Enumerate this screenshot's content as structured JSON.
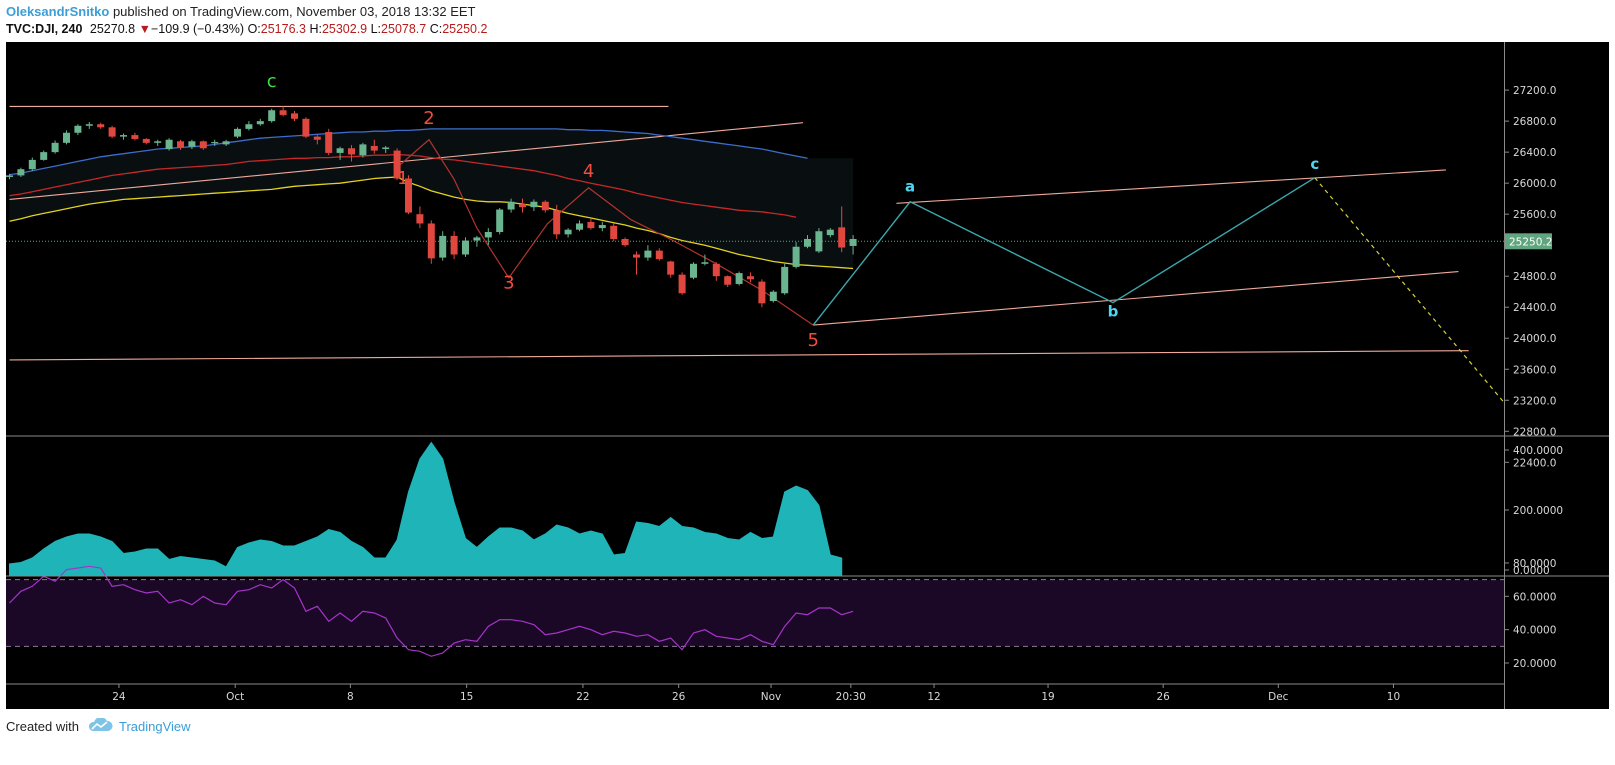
{
  "header": {
    "author": "OleksandrSnitko",
    "published_text": "published on TradingView.com, November 03, 2018 13:32 EET",
    "symbol": "TVC:DJI, 240",
    "last": "25270.8",
    "down_arrow": "▼",
    "change": "−109.9 (−0.43%)",
    "open_label": "O:",
    "open": "25176.3",
    "high_label": "H:",
    "high": "25302.9",
    "low_label": "L:",
    "low": "25078.7",
    "close_label": "C:",
    "close": "25250.2"
  },
  "footer": {
    "created_with": "Created with",
    "brand": "TradingView",
    "logo_icon": "tradingview-cloud-icon"
  },
  "colors": {
    "background": "#000000",
    "up": "#6ab58f",
    "down": "#e0473e",
    "volume_fill": "#1fb5b8",
    "rsi_line": "#a534c9",
    "rsi_band": "#1b0826",
    "ema_yellow": "#e3d21e",
    "ema_red": "#c62828",
    "ema_blue": "#3e6ccc",
    "trendline": "#f0a99a",
    "projection": "#3aa8ad",
    "projection_dashed": "#d8d23a",
    "wave_label_red": "#f24b3f",
    "wave_label_cyan": "#4fd6f0",
    "wave_label_green": "#3ede4a",
    "price_tag": "#5fa57e"
  },
  "chart_data": [
    {
      "type": "candlestick",
      "title": "TVC:DJI, 240",
      "x_tick_labels": [
        "24",
        "Oct",
        "8",
        "15",
        "22",
        "26",
        "Nov",
        "20:30",
        "12",
        "19",
        "26",
        "Dec",
        "10"
      ],
      "y_tick_labels": [
        "27200.0",
        "26800.0",
        "26400.0",
        "26000.0",
        "25600.0",
        "25250.2",
        "24800.0",
        "24400.0",
        "24000.0",
        "23600.0",
        "23200.0",
        "22800.0",
        "22400.0"
      ],
      "y_ticks": [
        27200,
        26800,
        26400,
        26000,
        25600,
        24800,
        24400,
        24000,
        23600,
        23200,
        22800,
        22400
      ],
      "ylim": [
        22360,
        27500
      ],
      "last_price": 25250.2,
      "last_price_label": "25250.2",
      "ohlc": [
        [
          26080,
          26120,
          26050,
          26100
        ],
        [
          26100,
          26200,
          26080,
          26180
        ],
        [
          26180,
          26330,
          26160,
          26300
        ],
        [
          26300,
          26420,
          26290,
          26400
        ],
        [
          26400,
          26550,
          26380,
          26520
        ],
        [
          26520,
          26680,
          26500,
          26650
        ],
        [
          26650,
          26760,
          26620,
          26740
        ],
        [
          26740,
          26790,
          26700,
          26760
        ],
        [
          26760,
          26780,
          26700,
          26720
        ],
        [
          26720,
          26740,
          26580,
          26600
        ],
        [
          26600,
          26640,
          26560,
          26620
        ],
        [
          26620,
          26650,
          26550,
          26570
        ],
        [
          26570,
          26580,
          26500,
          26520
        ],
        [
          26520,
          26560,
          26480,
          26540
        ],
        [
          26440,
          26580,
          26420,
          26560
        ],
        [
          26540,
          26560,
          26430,
          26460
        ],
        [
          26470,
          26560,
          26440,
          26540
        ],
        [
          26540,
          26550,
          26430,
          26450
        ],
        [
          26520,
          26560,
          26480,
          26530
        ],
        [
          26500,
          26560,
          26480,
          26540
        ],
        [
          26600,
          26720,
          26580,
          26700
        ],
        [
          26700,
          26800,
          26680,
          26760
        ],
        [
          26760,
          26830,
          26740,
          26800
        ],
        [
          26800,
          26960,
          26780,
          26940
        ],
        [
          26940,
          26990,
          26860,
          26880
        ],
        [
          26900,
          26930,
          26800,
          26830
        ],
        [
          26830,
          26850,
          26580,
          26600
        ],
        [
          26600,
          26620,
          26500,
          26560
        ],
        [
          26660,
          26700,
          26360,
          26390
        ],
        [
          26390,
          26470,
          26300,
          26450
        ],
        [
          26450,
          26490,
          26280,
          26370
        ],
        [
          26360,
          26520,
          26330,
          26500
        ],
        [
          26480,
          26560,
          26380,
          26420
        ],
        [
          26440,
          26480,
          26390,
          26460
        ],
        [
          26420,
          26450,
          26040,
          26060
        ],
        [
          26060,
          26100,
          25600,
          25620
        ],
        [
          25600,
          25700,
          25420,
          25480
        ],
        [
          25480,
          25520,
          24960,
          25030
        ],
        [
          25040,
          25380,
          25000,
          25320
        ],
        [
          25320,
          25380,
          25020,
          25080
        ],
        [
          25080,
          25300,
          25050,
          25260
        ],
        [
          25260,
          25320,
          25180,
          25300
        ],
        [
          25300,
          25420,
          25200,
          25370
        ],
        [
          25370,
          25680,
          25340,
          25660
        ],
        [
          25660,
          25800,
          25620,
          25760
        ],
        [
          25730,
          25800,
          25620,
          25690
        ],
        [
          25690,
          25790,
          25640,
          25760
        ],
        [
          25760,
          25780,
          25620,
          25650
        ],
        [
          25650,
          25720,
          25280,
          25340
        ],
        [
          25340,
          25420,
          25300,
          25400
        ],
        [
          25400,
          25520,
          25380,
          25480
        ],
        [
          25500,
          25540,
          25400,
          25420
        ],
        [
          25420,
          25500,
          25380,
          25460
        ],
        [
          25450,
          25480,
          25250,
          25280
        ],
        [
          25280,
          25300,
          25180,
          25200
        ],
        [
          25080,
          25120,
          24820,
          25040
        ],
        [
          25040,
          25200,
          25000,
          25130
        ],
        [
          25130,
          25160,
          25000,
          25020
        ],
        [
          24990,
          25000,
          24780,
          24820
        ],
        [
          24820,
          24850,
          24560,
          24580
        ],
        [
          24780,
          24980,
          24760,
          24960
        ],
        [
          24960,
          25080,
          24940,
          24980
        ],
        [
          24960,
          24980,
          24740,
          24800
        ],
        [
          24800,
          24810,
          24660,
          24690
        ],
        [
          24700,
          24860,
          24680,
          24840
        ],
        [
          24800,
          24850,
          24720,
          24760
        ],
        [
          24730,
          24760,
          24400,
          24450
        ],
        [
          24480,
          24620,
          24460,
          24600
        ],
        [
          24580,
          24960,
          24560,
          24920
        ],
        [
          24920,
          25240,
          24900,
          25180
        ],
        [
          25180,
          25330,
          25160,
          25280
        ],
        [
          25120,
          25420,
          25100,
          25380
        ],
        [
          25330,
          25420,
          25300,
          25400
        ],
        [
          25430,
          25700,
          25110,
          25170
        ],
        [
          25190,
          25330,
          25080,
          25280
        ]
      ],
      "series": [
        {
          "name": "EMA yellow",
          "values": [
            25510,
            25540,
            25580,
            25610,
            25640,
            25670,
            25700,
            25730,
            25750,
            25770,
            25790,
            25800,
            25810,
            25820,
            25830,
            25840,
            25850,
            25860,
            25870,
            25880,
            25890,
            25900,
            25910,
            25920,
            25940,
            25960,
            25970,
            25980,
            25990,
            26000,
            26020,
            26040,
            26060,
            26070,
            26080,
            26010,
            25960,
            25900,
            25860,
            25820,
            25790,
            25770,
            25760,
            25760,
            25750,
            25730,
            25710,
            25690,
            25650,
            25610,
            25580,
            25550,
            25520,
            25490,
            25460,
            25420,
            25390,
            25350,
            25300,
            25260,
            25230,
            25200,
            25160,
            25120,
            25080,
            25050,
            25020,
            24990,
            24970,
            24950,
            24940,
            24930,
            24920,
            24910,
            24900
          ]
        },
        {
          "name": "EMA red",
          "values": [
            25840,
            25860,
            25890,
            25920,
            25950,
            25980,
            26010,
            26040,
            26070,
            26100,
            26120,
            26140,
            26160,
            26180,
            26190,
            26200,
            26210,
            26220,
            26230,
            26240,
            26260,
            26280,
            26290,
            26300,
            26310,
            26320,
            26320,
            26330,
            26330,
            26340,
            26340,
            26350,
            26360,
            26360,
            26370,
            26360,
            26350,
            26330,
            26310,
            26300,
            26280,
            26260,
            26240,
            26220,
            26200,
            26180,
            26160,
            26130,
            26100,
            26060,
            26030,
            26000,
            25970,
            25940,
            25910,
            25870,
            25840,
            25810,
            25780,
            25750,
            25730,
            25710,
            25690,
            25670,
            25650,
            25640,
            25630,
            25610,
            25590,
            25560
          ]
        },
        {
          "name": "EMA blue",
          "values": [
            26110,
            26130,
            26160,
            26190,
            26220,
            26250,
            26280,
            26310,
            26340,
            26360,
            26380,
            26400,
            26420,
            26440,
            26450,
            26460,
            26470,
            26480,
            26500,
            26520,
            26540,
            26560,
            26580,
            26590,
            26600,
            26610,
            26620,
            26630,
            26640,
            26650,
            26660,
            26660,
            26670,
            26670,
            26680,
            26680,
            26690,
            26700,
            26700,
            26700,
            26700,
            26700,
            26700,
            26700,
            26700,
            26700,
            26700,
            26700,
            26700,
            26690,
            26690,
            26680,
            26680,
            26670,
            26660,
            26650,
            26640,
            26620,
            26600,
            26580,
            26560,
            26540,
            26520,
            26500,
            26480,
            26460,
            26440,
            26410,
            26380,
            26350,
            26320
          ]
        }
      ],
      "wave_labels": [
        {
          "text": "c",
          "bar": 23,
          "y": 27240,
          "color": "wave_label_green"
        },
        {
          "text": "1",
          "bar": 34.5,
          "y": 25990,
          "color": "wave_label_red"
        },
        {
          "text": "2",
          "bar": 36.8,
          "y": 26760,
          "color": "wave_label_red"
        },
        {
          "text": "3",
          "bar": 43.8,
          "y": 24640,
          "color": "wave_label_red"
        },
        {
          "text": "4",
          "bar": 50.8,
          "y": 26080,
          "color": "wave_label_red"
        },
        {
          "text": "5",
          "bar": 70.5,
          "y": 23900,
          "color": "wave_label_red"
        },
        {
          "text": "a",
          "bar": 79,
          "y": 25890,
          "color": "wave_label_cyan"
        },
        {
          "text": "b",
          "bar": 96.8,
          "y": 24280,
          "color": "wave_label_cyan"
        },
        {
          "text": "c",
          "bar": 114.5,
          "y": 26180,
          "color": "wave_label_cyan"
        }
      ],
      "wave_path": [
        [
          34.3,
          26240
        ],
        [
          36.8,
          26560
        ],
        [
          39.0,
          26050
        ],
        [
          41.0,
          25420
        ],
        [
          43.8,
          24780
        ],
        [
          47.2,
          25480
        ],
        [
          50.8,
          25940
        ],
        [
          54.5,
          25530
        ],
        [
          58.2,
          25260
        ],
        [
          62.0,
          24960
        ],
        [
          66.0,
          24620
        ],
        [
          70.5,
          24170
        ]
      ],
      "projection_path": [
        [
          70.5,
          24170
        ],
        [
          79.0,
          25760
        ],
        [
          96.8,
          24460
        ],
        [
          114.5,
          26070
        ]
      ],
      "projection_dashed": [
        [
          114.5,
          26070
        ],
        [
          134.2,
          22630
        ]
      ],
      "trendlines": [
        {
          "from": [
            0,
            26990
          ],
          "to": [
            57.8,
            26990
          ]
        },
        {
          "from": [
            0,
            25790
          ],
          "to": [
            69.6,
            26780
          ]
        },
        {
          "from": [
            0,
            23720
          ],
          "to": [
            128.0,
            23840
          ]
        },
        {
          "from": [
            77.8,
            25740
          ],
          "to": [
            126.0,
            26170
          ]
        },
        {
          "from": [
            70.5,
            24170
          ],
          "to": [
            127.1,
            24860
          ]
        }
      ]
    },
    {
      "type": "area",
      "title": "",
      "y_tick_labels": [
        "400.0000",
        "200.0000",
        "0.0000"
      ],
      "y_ticks": [
        400,
        200,
        0
      ],
      "ylim": [
        0,
        455
      ],
      "values": [
        20,
        25,
        40,
        70,
        95,
        110,
        120,
        120,
        110,
        95,
        55,
        60,
        70,
        70,
        35,
        45,
        40,
        35,
        30,
        10,
        75,
        90,
        100,
        95,
        80,
        80,
        95,
        110,
        135,
        125,
        95,
        75,
        40,
        40,
        100,
        260,
        370,
        425,
        370,
        225,
        105,
        75,
        110,
        140,
        140,
        130,
        100,
        120,
        150,
        140,
        120,
        130,
        120,
        50,
        55,
        160,
        155,
        145,
        175,
        145,
        140,
        125,
        120,
        105,
        100,
        125,
        105,
        110,
        260,
        280,
        265,
        215,
        50,
        40
      ]
    },
    {
      "type": "line",
      "title": "",
      "y_tick_labels": [
        "80.0000",
        "60.0000",
        "40.0000",
        "20.0000"
      ],
      "y_ticks": [
        80,
        60,
        40,
        20
      ],
      "ylim": [
        18,
        82
      ],
      "band": [
        30,
        70
      ],
      "values": [
        56,
        63,
        66,
        72,
        69,
        76,
        77,
        78,
        77,
        66,
        67,
        64,
        62,
        63,
        56,
        58,
        55,
        60,
        56,
        55,
        63,
        64,
        67,
        65,
        70,
        65,
        51,
        54,
        45,
        50,
        45,
        51,
        50,
        47,
        35,
        28,
        27,
        24,
        26,
        32,
        34,
        33,
        42,
        46,
        46,
        45,
        43,
        37,
        38,
        40,
        42,
        40,
        37,
        39,
        38,
        36,
        37,
        33,
        35,
        28,
        38,
        40,
        36,
        35,
        34,
        37,
        33,
        31,
        42,
        50,
        49,
        53,
        53,
        49,
        51
      ]
    }
  ]
}
